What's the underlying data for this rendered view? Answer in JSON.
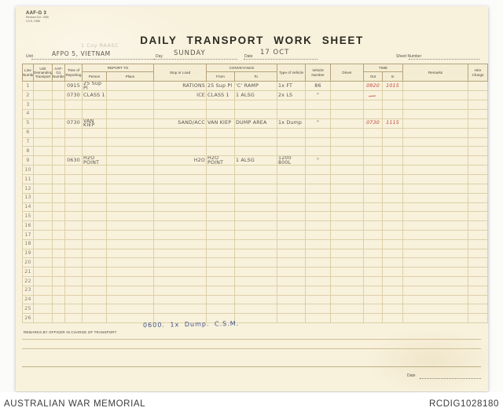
{
  "colors": {
    "paper": "#f8f1dc",
    "pencil_ink": "#5b554c",
    "red_ink": "#c4453c",
    "blue_ink": "#3f5286",
    "grid_line": "#cdbf98"
  },
  "form": {
    "form_code": "AAF-G 3",
    "form_code_sub1": "Revised Oct. 1965",
    "form_code_sub2": "I.G.S. 1968",
    "title": "DAILY TRANSPORT WORK SHEET",
    "unit_label": "Unit",
    "unit_stamp_faint": "1 Coy RAASC",
    "unit_value": "AFPO 5, VIETNAM",
    "day_label": "Day",
    "day_value": "SUNDAY",
    "date_label": "Date",
    "date_value": "17 OCT",
    "sheet_number_label": "Sheet Number",
    "remarks_officer_label": "REMARKS BY OFFICER IN CHARGE OF TRANSPORT",
    "remarks_handwritten": "0600. 1x Dump. C.S.M.",
    "bottom_date_label": "Date"
  },
  "table": {
    "columns": {
      "line": "Line Number",
      "unit_demanding": "Unit Demanding Transport",
      "aafg1": "AAF-G1 Number",
      "time": "Time of Reporting",
      "report_to": "REPORT TO",
      "person": "Person",
      "place": "Place",
      "stop_or_load": "Stop or Load",
      "conveyance": "CONVEYANCE",
      "from": "From",
      "to": "To",
      "type": "Type of Vehicle",
      "veh_no": "Vehicle Number",
      "driver": "Driver",
      "time_group": "TIME",
      "out": "Out",
      "in": "In",
      "remarks": "Remarks",
      "hire": "Hire Charge"
    },
    "rows": [
      {
        "line": "1",
        "time": "0915",
        "person": "25 Sup Pl",
        "stop_or_load": "RATIONS",
        "from": "25 Sup Pl",
        "to": "'C' RAMP",
        "type": "1x FT",
        "veh_no": "86",
        "out": "0920",
        "in": "1015"
      },
      {
        "line": "2",
        "time": "0730",
        "person": "CLASS 1",
        "stop_or_load": "ICE",
        "from": "CLASS 1",
        "to": "1 ALSG",
        "type": "2x LS",
        "veh_no": "\""
      },
      {
        "line": "3"
      },
      {
        "line": "4"
      },
      {
        "line": "5",
        "time": "0730",
        "person": "VAN KIEP",
        "stop_or_load": "SAND/ACC",
        "from": "VAN KIEP",
        "to": "DUMP AREA",
        "type": "1x Dump",
        "veh_no": "\"",
        "out": "0730",
        "in": "1115"
      },
      {
        "line": "6"
      },
      {
        "line": "7"
      },
      {
        "line": "8"
      },
      {
        "line": "9",
        "time": "0630",
        "person": "H2O POINT",
        "stop_or_load": "H2O",
        "from": "H2O POINT",
        "to": "1 ALSG",
        "type": "1200\n800L",
        "veh_no": "\""
      },
      {
        "line": "10"
      },
      {
        "line": "11"
      },
      {
        "line": "12"
      },
      {
        "line": "13"
      },
      {
        "line": "14"
      },
      {
        "line": "15"
      },
      {
        "line": "16"
      },
      {
        "line": "17"
      },
      {
        "line": "18"
      },
      {
        "line": "19"
      },
      {
        "line": "20"
      },
      {
        "line": "21"
      },
      {
        "line": "22"
      },
      {
        "line": "23"
      },
      {
        "line": "24"
      },
      {
        "line": "25"
      },
      {
        "line": "26"
      }
    ]
  },
  "footer": {
    "left": "AUSTRALIAN WAR MEMORIAL",
    "right": "RCDIG1028180"
  }
}
